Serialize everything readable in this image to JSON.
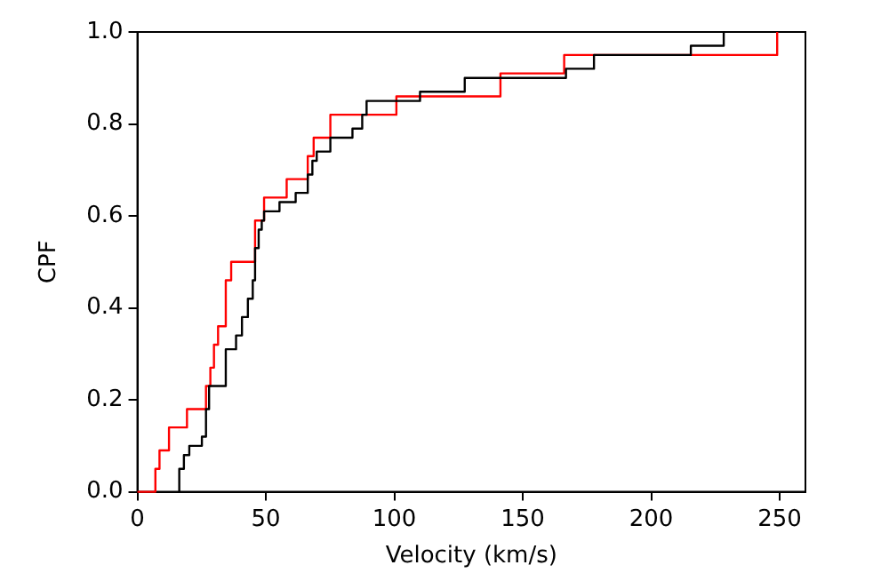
{
  "chart_data": {
    "type": "step",
    "xlabel": "Velocity (km/s)",
    "ylabel": "CPF",
    "xlim": [
      0,
      260
    ],
    "xticks": [
      0,
      50,
      100,
      150,
      200,
      250
    ],
    "ylim": [
      0,
      1
    ],
    "yticks": [
      {
        "value": 0,
        "label": "0.0"
      },
      {
        "value": 0.2,
        "label": "0.2"
      },
      {
        "value": 0.4,
        "label": "0.4"
      },
      {
        "value": 0.6,
        "label": "0.6"
      },
      {
        "value": 0.8,
        "label": "0.8"
      },
      {
        "value": 1,
        "label": "1.0"
      }
    ],
    "grid": false,
    "legend": false,
    "marker": "none",
    "series": [
      {
        "color": "#000000",
        "x": [
          16,
          16.3,
          18.1,
          20.2,
          25.1,
          26.7,
          27.9,
          34.4,
          38.4,
          40.7,
          43,
          44.9,
          45.8,
          47.2,
          48.4,
          49.3,
          55.3,
          61.6,
          66.3,
          68.1,
          69.8,
          75.1,
          83.7,
          87.5,
          89.2,
          110,
          127.4,
          166.8,
          177.7,
          215.4,
          228.2
        ],
        "values": [
          0,
          0.05,
          0.08,
          0.1,
          0.12,
          0.18,
          0.23,
          0.31,
          0.34,
          0.38,
          0.42,
          0.46,
          0.53,
          0.57,
          0.59,
          0.61,
          0.63,
          0.65,
          0.69,
          0.72,
          0.74,
          0.77,
          0.79,
          0.82,
          0.85,
          0.87,
          0.9,
          0.92,
          0.95,
          0.97,
          1
        ]
      },
      {
        "color": "#ff0000",
        "x": [
          0,
          7,
          8.6,
          12.3,
          19.3,
          26.7,
          28.4,
          29.8,
          31.4,
          34.4,
          36.5,
          45.8,
          49.3,
          58.1,
          66.3,
          68.6,
          75.1,
          100.8,
          141.3,
          166.1,
          249
        ],
        "values": [
          0,
          0.05,
          0.09,
          0.14,
          0.18,
          0.23,
          0.27,
          0.32,
          0.36,
          0.46,
          0.5,
          0.59,
          0.64,
          0.68,
          0.73,
          0.77,
          0.82,
          0.86,
          0.91,
          0.95,
          1
        ]
      }
    ]
  }
}
